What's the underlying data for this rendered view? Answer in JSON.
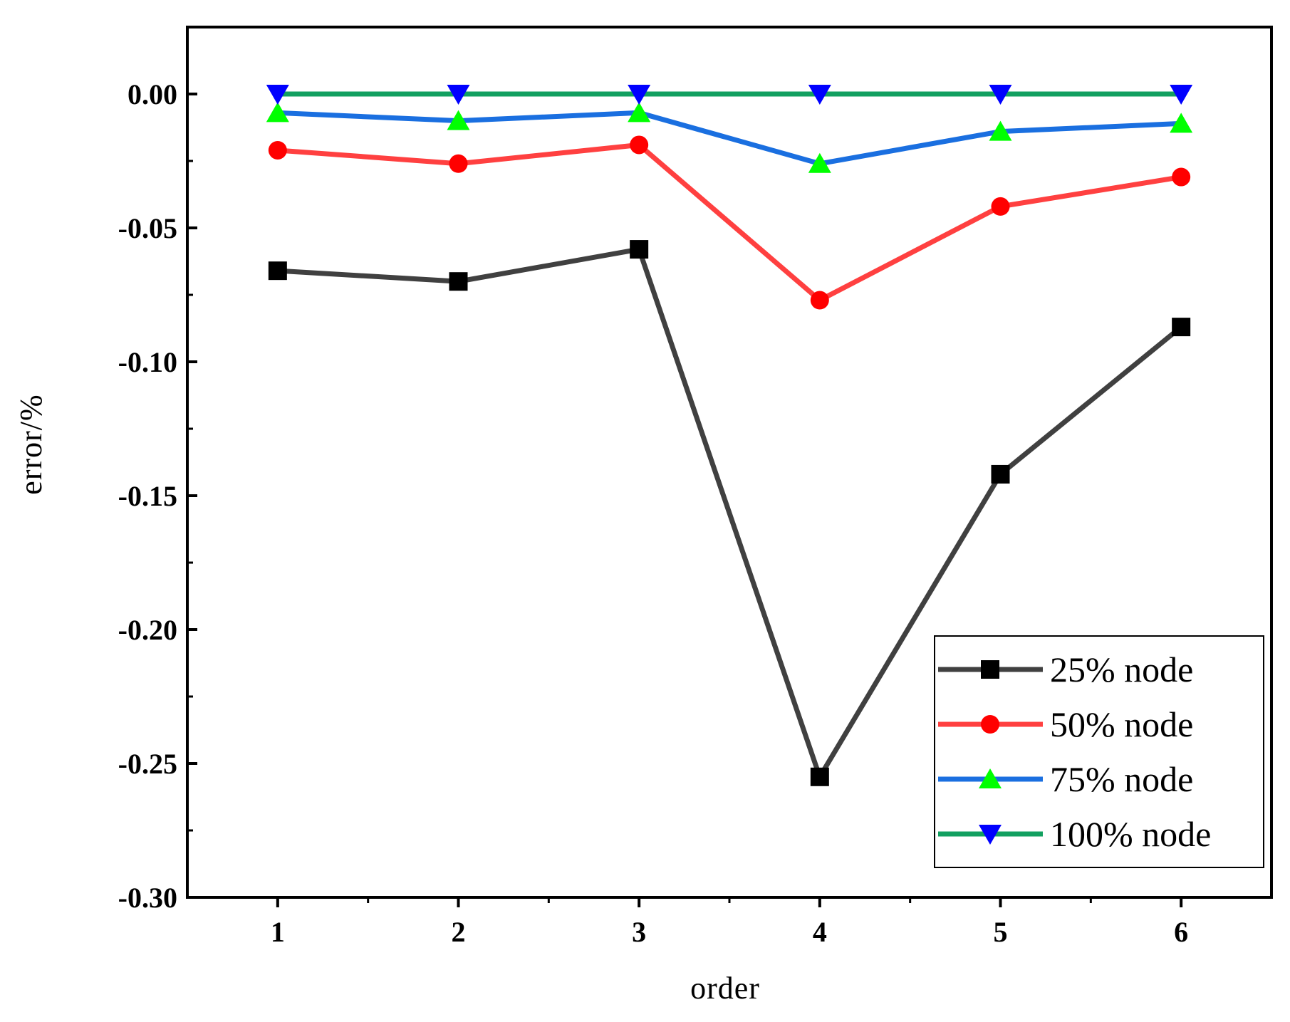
{
  "chart_data": {
    "type": "line",
    "title": "",
    "xlabel": "order",
    "ylabel": "error/%",
    "x": [
      1,
      2,
      3,
      4,
      5,
      6
    ],
    "xlim": [
      0.5,
      6.5
    ],
    "ylim": [
      -0.3,
      0.025
    ],
    "xticks": [
      1,
      2,
      3,
      4,
      5,
      6
    ],
    "xtick_labels": [
      "1",
      "2",
      "3",
      "4",
      "5",
      "6"
    ],
    "yticks": [
      0.0,
      -0.05,
      -0.1,
      -0.15,
      -0.2,
      -0.25,
      -0.3
    ],
    "ytick_labels": [
      "0.00",
      "-0.05",
      "-0.10",
      "-0.15",
      "-0.20",
      "-0.25",
      "-0.30"
    ],
    "grid": false,
    "legend_position": "bottom-right",
    "series": [
      {
        "name": "25% node",
        "color": "#404040",
        "marker_color": "#000000",
        "marker": "square",
        "values": [
          -0.066,
          -0.07,
          -0.058,
          -0.255,
          -0.142,
          -0.087
        ]
      },
      {
        "name": "50% node",
        "color": "#ff4040",
        "marker_color": "#ff0000",
        "marker": "circle",
        "values": [
          -0.021,
          -0.026,
          -0.019,
          -0.077,
          -0.042,
          -0.031
        ]
      },
      {
        "name": "75% node",
        "color": "#1a6fe0",
        "marker_color": "#00ff00",
        "marker": "triangle-up",
        "values": [
          -0.007,
          -0.01,
          -0.007,
          -0.026,
          -0.014,
          -0.011
        ]
      },
      {
        "name": "100% node",
        "color": "#12a060",
        "marker_color": "#0000ff",
        "marker": "triangle-down",
        "values": [
          0.0,
          0.0,
          0.0,
          0.0,
          0.0,
          0.0
        ]
      }
    ]
  }
}
